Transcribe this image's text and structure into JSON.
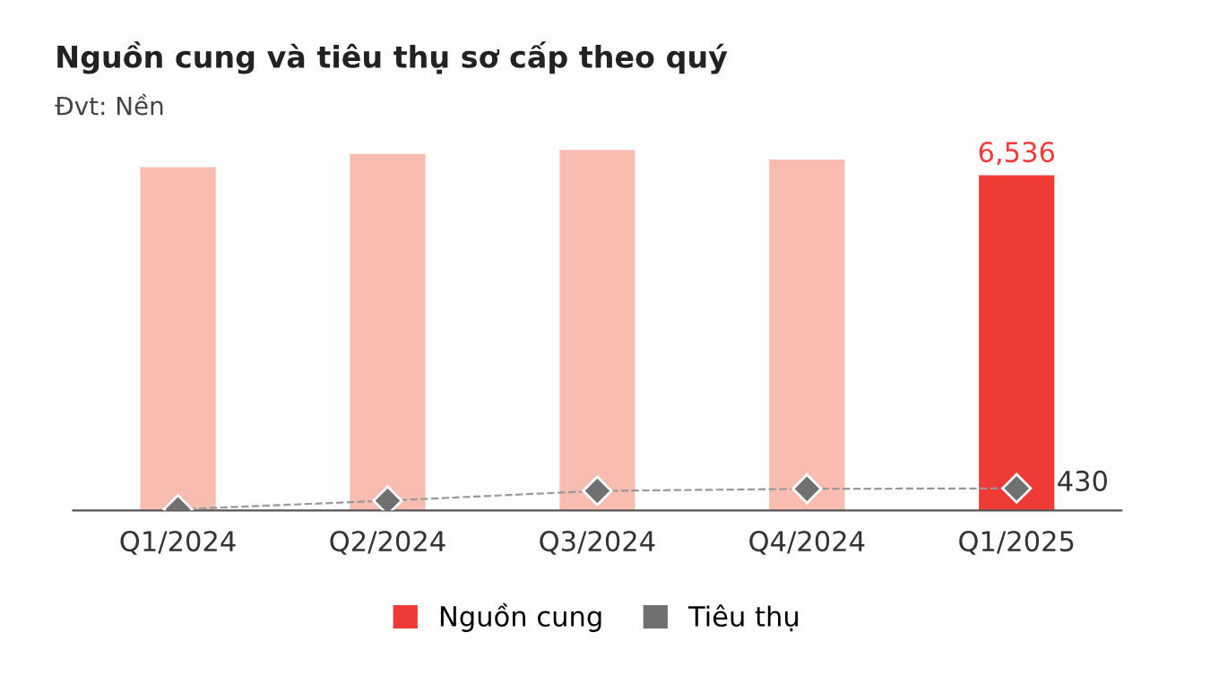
{
  "chart_data": {
    "type": "bar",
    "title": "Nguồn cung và tiêu thụ sơ cấp theo quý",
    "subtitle": "Đvt: Nền",
    "categories": [
      "Q1/2024",
      "Q2/2024",
      "Q3/2024",
      "Q4/2024",
      "Q1/2025"
    ],
    "series": [
      {
        "name": "Nguồn cung",
        "color": "#ef3b36",
        "colors": [
          "#f9bcb0",
          "#f9bcb0",
          "#f9bcb0",
          "#f9bcb0",
          "#ef3b36"
        ],
        "values": [
          6690,
          6950,
          7030,
          6840,
          6536
        ],
        "value_labels": [
          null,
          null,
          null,
          null,
          "6,536"
        ]
      },
      {
        "name": "Tiêu thụ",
        "type": "line",
        "color": "#707070",
        "marker": "diamond",
        "line_style": "dashed",
        "values": [
          20,
          190,
          380,
          420,
          430
        ],
        "value_labels": [
          null,
          null,
          null,
          null,
          "430"
        ]
      }
    ],
    "legend": "bottom",
    "grid": false
  }
}
